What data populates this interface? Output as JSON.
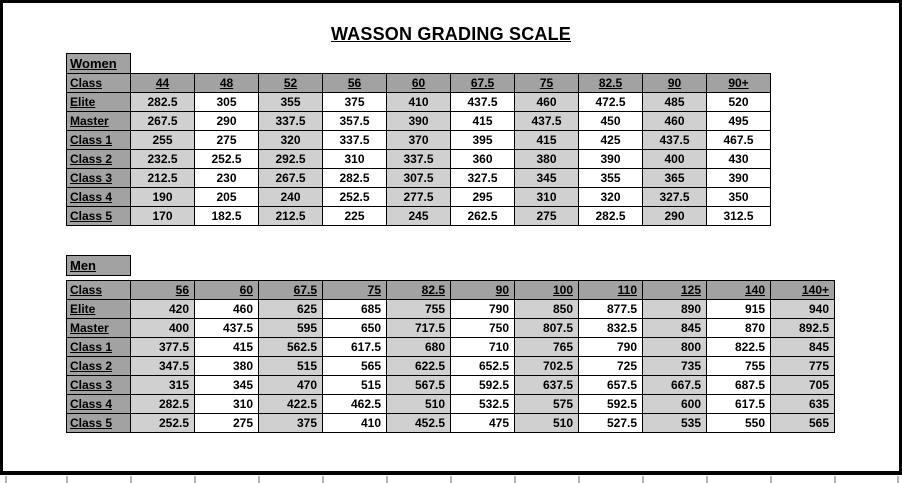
{
  "title": "WASSON GRADING SCALE",
  "colors": {
    "header_bg": "#a2a2a2",
    "shaded_cell_bg": "#d0d0d0",
    "plain_cell_bg": "#ffffff",
    "grid_border": "#000000"
  },
  "women": {
    "section_label": "Women",
    "corner_label": "Class",
    "weight_classes": [
      "44",
      "48",
      "52",
      "56",
      "60",
      "67.5",
      "75",
      "82.5",
      "90",
      "90+"
    ],
    "rows": [
      {
        "label": "Elite",
        "values": [
          "282.5",
          "305",
          "355",
          "375",
          "410",
          "437.5",
          "460",
          "472.5",
          "485",
          "520"
        ]
      },
      {
        "label": "Master",
        "values": [
          "267.5",
          "290",
          "337.5",
          "357.5",
          "390",
          "415",
          "437.5",
          "450",
          "460",
          "495"
        ]
      },
      {
        "label": "Class 1",
        "values": [
          "255",
          "275",
          "320",
          "337.5",
          "370",
          "395",
          "415",
          "425",
          "437.5",
          "467.5"
        ]
      },
      {
        "label": "Class 2",
        "values": [
          "232.5",
          "252.5",
          "292.5",
          "310",
          "337.5",
          "360",
          "380",
          "390",
          "400",
          "430"
        ]
      },
      {
        "label": "Class 3",
        "values": [
          "212.5",
          "230",
          "267.5",
          "282.5",
          "307.5",
          "327.5",
          "345",
          "355",
          "365",
          "390"
        ]
      },
      {
        "label": "Class 4",
        "values": [
          "190",
          "205",
          "240",
          "252.5",
          "277.5",
          "295",
          "310",
          "320",
          "327.5",
          "350"
        ]
      },
      {
        "label": "Class 5",
        "values": [
          "170",
          "182.5",
          "212.5",
          "225",
          "245",
          "262.5",
          "275",
          "282.5",
          "290",
          "312.5"
        ]
      }
    ]
  },
  "men": {
    "section_label": "Men",
    "corner_label": "Class",
    "weight_classes": [
      "56",
      "60",
      "67.5",
      "75",
      "82.5",
      "90",
      "100",
      "110",
      "125",
      "140",
      "140+"
    ],
    "rows": [
      {
        "label": "Elite",
        "values": [
          "420",
          "460",
          "625",
          "685",
          "755",
          "790",
          "850",
          "877.5",
          "890",
          "915",
          "940"
        ]
      },
      {
        "label": "Master",
        "values": [
          "400",
          "437.5",
          "595",
          "650",
          "717.5",
          "750",
          "807.5",
          "832.5",
          "845",
          "870",
          "892.5"
        ]
      },
      {
        "label": "Class 1",
        "values": [
          "377.5",
          "415",
          "562.5",
          "617.5",
          "680",
          "710",
          "765",
          "790",
          "800",
          "822.5",
          "845"
        ]
      },
      {
        "label": "Class 2",
        "values": [
          "347.5",
          "380",
          "515",
          "565",
          "622.5",
          "652.5",
          "702.5",
          "725",
          "735",
          "755",
          "775"
        ]
      },
      {
        "label": "Class 3",
        "values": [
          "315",
          "345",
          "470",
          "515",
          "567.5",
          "592.5",
          "637.5",
          "657.5",
          "667.5",
          "687.5",
          "705"
        ]
      },
      {
        "label": "Class 4",
        "values": [
          "282.5",
          "310",
          "422.5",
          "462.5",
          "510",
          "532.5",
          "575",
          "592.5",
          "600",
          "617.5",
          "635"
        ]
      },
      {
        "label": "Class 5",
        "values": [
          "252.5",
          "275",
          "375",
          "410",
          "452.5",
          "475",
          "510",
          "527.5",
          "535",
          "550",
          "565"
        ]
      }
    ]
  }
}
